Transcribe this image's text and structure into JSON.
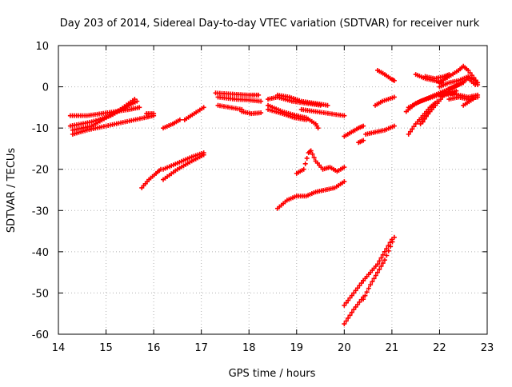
{
  "chart_data": {
    "type": "scatter",
    "title": "Day 203 of 2014, Sidereal Day-to-day VTEC variation (SDTVAR) for receiver nurk",
    "xlabel": "GPS time / hours",
    "ylabel": "SDTVAR / TECUs",
    "xlim": [
      14,
      23
    ],
    "ylim": [
      -60,
      10
    ],
    "x_ticks": [
      14,
      15,
      16,
      17,
      18,
      19,
      20,
      21,
      22,
      23
    ],
    "y_ticks": [
      -60,
      -50,
      -40,
      -30,
      -20,
      -10,
      0,
      10
    ],
    "grid": true,
    "legend": "none",
    "marker": "+",
    "marker_color": "#ff0000",
    "segments": [
      [
        [
          14.25,
          -7.0
        ],
        [
          14.6,
          -7.0
        ],
        [
          14.9,
          -6.5
        ],
        [
          15.2,
          -6.0
        ],
        [
          15.5,
          -5.5
        ],
        [
          15.7,
          -5.0
        ]
      ],
      [
        [
          14.25,
          -9.5
        ],
        [
          14.7,
          -8.5
        ],
        [
          15.1,
          -7.0
        ],
        [
          15.4,
          -5.0
        ],
        [
          15.65,
          -3.5
        ]
      ],
      [
        [
          14.3,
          -10.5
        ],
        [
          14.7,
          -9.5
        ],
        [
          15.0,
          -7.5
        ],
        [
          15.3,
          -5.5
        ],
        [
          15.6,
          -3.0
        ]
      ],
      [
        [
          14.3,
          -11.5
        ],
        [
          14.6,
          -10.5
        ],
        [
          15.0,
          -9.5
        ],
        [
          15.4,
          -8.5
        ],
        [
          15.8,
          -7.5
        ],
        [
          16.0,
          -7.0
        ]
      ],
      [
        [
          15.85,
          -6.5
        ],
        [
          16.0,
          -6.5
        ]
      ],
      [
        [
          15.75,
          -24.5
        ],
        [
          15.9,
          -22.5
        ],
        [
          16.05,
          -21.0
        ],
        [
          16.15,
          -20.0
        ]
      ],
      [
        [
          16.2,
          -10.0
        ],
        [
          16.4,
          -9.0
        ],
        [
          16.55,
          -8.0
        ]
      ],
      [
        [
          16.65,
          -8.0
        ],
        [
          16.85,
          -6.5
        ],
        [
          17.05,
          -5.0
        ]
      ],
      [
        [
          16.2,
          -20.0
        ],
        [
          16.5,
          -18.5
        ],
        [
          16.8,
          -17.0
        ],
        [
          17.05,
          -16.0
        ]
      ],
      [
        [
          16.2,
          -22.5
        ],
        [
          16.5,
          -20.0
        ],
        [
          16.8,
          -18.0
        ],
        [
          17.05,
          -16.5
        ]
      ],
      [
        [
          17.3,
          -1.5
        ],
        [
          17.7,
          -1.8
        ],
        [
          18.0,
          -2.0
        ],
        [
          18.2,
          -2.0
        ]
      ],
      [
        [
          17.35,
          -2.5
        ],
        [
          17.7,
          -3.0
        ],
        [
          18.0,
          -3.2
        ],
        [
          18.25,
          -3.5
        ]
      ],
      [
        [
          17.35,
          -4.5
        ],
        [
          17.6,
          -5.0
        ],
        [
          17.85,
          -5.5
        ]
      ],
      [
        [
          17.85,
          -6.0
        ],
        [
          18.05,
          -6.5
        ],
        [
          18.25,
          -6.3
        ]
      ],
      [
        [
          18.4,
          -3.0
        ],
        [
          18.6,
          -2.5
        ],
        [
          18.9,
          -3.5
        ],
        [
          19.2,
          -4.0
        ],
        [
          19.5,
          -4.5
        ]
      ],
      [
        [
          18.6,
          -2.0
        ],
        [
          18.85,
          -2.5
        ],
        [
          19.1,
          -3.5
        ],
        [
          19.4,
          -4.0
        ],
        [
          19.65,
          -4.5
        ]
      ],
      [
        [
          18.4,
          -4.5
        ],
        [
          18.7,
          -6.0
        ],
        [
          19.0,
          -7.0
        ],
        [
          19.2,
          -7.5
        ],
        [
          19.4,
          -9.0
        ],
        [
          19.45,
          -10.0
        ]
      ],
      [
        [
          18.4,
          -5.5
        ],
        [
          18.7,
          -6.5
        ],
        [
          18.95,
          -7.5
        ],
        [
          19.2,
          -8.0
        ]
      ],
      [
        [
          19.1,
          -5.5
        ],
        [
          19.4,
          -6.0
        ],
        [
          19.7,
          -6.5
        ],
        [
          20.0,
          -7.0
        ]
      ],
      [
        [
          18.6,
          -29.5
        ],
        [
          18.8,
          -27.5
        ],
        [
          19.0,
          -26.5
        ],
        [
          19.2,
          -26.5
        ],
        [
          19.4,
          -25.5
        ],
        [
          19.6,
          -25.0
        ],
        [
          19.8,
          -24.5
        ],
        [
          20.0,
          -23.0
        ]
      ],
      [
        [
          19.0,
          -21.0
        ],
        [
          19.15,
          -20.0
        ],
        [
          19.25,
          -16.0
        ],
        [
          19.3,
          -15.5
        ],
        [
          19.4,
          -18.0
        ],
        [
          19.55,
          -20.0
        ],
        [
          19.7,
          -19.5
        ],
        [
          19.85,
          -20.5
        ],
        [
          20.0,
          -19.5
        ]
      ],
      [
        [
          20.0,
          -12.0
        ],
        [
          20.15,
          -11.0
        ],
        [
          20.3,
          -10.0
        ],
        [
          20.4,
          -9.5
        ]
      ],
      [
        [
          20.3,
          -13.5
        ],
        [
          20.4,
          -13.0
        ]
      ],
      [
        [
          20.45,
          -11.5
        ],
        [
          20.65,
          -11.0
        ],
        [
          20.85,
          -10.5
        ],
        [
          21.05,
          -9.5
        ]
      ],
      [
        [
          20.65,
          -4.5
        ],
        [
          20.8,
          -3.5
        ],
        [
          21.05,
          -2.5
        ]
      ],
      [
        [
          20.7,
          4.0
        ],
        [
          20.85,
          3.0
        ],
        [
          21.0,
          1.8
        ],
        [
          21.05,
          1.5
        ]
      ],
      [
        [
          20.0,
          -53.0
        ],
        [
          20.2,
          -50.0
        ],
        [
          20.4,
          -47.0
        ]
      ],
      [
        [
          20.0,
          -57.5
        ],
        [
          20.2,
          -54.0
        ],
        [
          20.4,
          -51.0
        ]
      ],
      [
        [
          20.4,
          -51.5
        ],
        [
          20.55,
          -48.0
        ],
        [
          20.7,
          -45.0
        ],
        [
          20.85,
          -42.0
        ],
        [
          21.05,
          -36.5
        ]
      ],
      [
        [
          20.4,
          -47.0
        ],
        [
          20.55,
          -45.0
        ],
        [
          20.7,
          -43.0
        ],
        [
          20.85,
          -40.0
        ],
        [
          21.0,
          -37.0
        ]
      ],
      [
        [
          21.35,
          -11.5
        ],
        [
          21.5,
          -9.0
        ],
        [
          21.65,
          -7.0
        ],
        [
          21.8,
          -5.0
        ],
        [
          21.9,
          -4.0
        ]
      ],
      [
        [
          21.3,
          -6.0
        ],
        [
          21.5,
          -4.0
        ],
        [
          21.7,
          -3.0
        ],
        [
          21.9,
          -2.0
        ],
        [
          22.1,
          -1.0
        ],
        [
          22.3,
          0.0
        ],
        [
          22.5,
          1.0
        ]
      ],
      [
        [
          21.35,
          -5.0
        ],
        [
          21.6,
          -3.5
        ],
        [
          21.85,
          -2.5
        ],
        [
          22.1,
          -1.5
        ],
        [
          22.35,
          -1.0
        ]
      ],
      [
        [
          21.6,
          -9.0
        ],
        [
          21.8,
          -6.0
        ],
        [
          21.95,
          -4.0
        ],
        [
          22.1,
          -2.0
        ],
        [
          22.3,
          -1.5
        ]
      ],
      [
        [
          21.65,
          -8.5
        ],
        [
          21.8,
          -5.5
        ],
        [
          21.95,
          -3.5
        ]
      ],
      [
        [
          21.7,
          2.5
        ],
        [
          21.9,
          2.0
        ],
        [
          22.1,
          2.5
        ],
        [
          22.2,
          3.0
        ]
      ],
      [
        [
          21.5,
          3.0
        ],
        [
          21.7,
          2.0
        ],
        [
          21.9,
          1.5
        ],
        [
          22.05,
          1.0
        ]
      ],
      [
        [
          22.0,
          1.0
        ],
        [
          22.2,
          2.5
        ],
        [
          22.4,
          4.0
        ],
        [
          22.5,
          5.0
        ],
        [
          22.6,
          4.0
        ],
        [
          22.8,
          1.0
        ]
      ],
      [
        [
          22.0,
          0.0
        ],
        [
          22.2,
          1.0
        ],
        [
          22.4,
          1.5
        ],
        [
          22.6,
          2.5
        ],
        [
          22.75,
          1.5
        ],
        [
          22.8,
          0.5
        ]
      ],
      [
        [
          22.0,
          -2.0
        ],
        [
          22.2,
          -1.5
        ],
        [
          22.4,
          -2.0
        ],
        [
          22.6,
          -2.5
        ],
        [
          22.8,
          -2.0
        ]
      ],
      [
        [
          22.2,
          -3.0
        ],
        [
          22.4,
          -2.5
        ],
        [
          22.6,
          -3.0
        ],
        [
          22.8,
          -2.5
        ]
      ],
      [
        [
          22.2,
          -0.5
        ],
        [
          22.4,
          0.5
        ],
        [
          22.6,
          2.0
        ],
        [
          22.75,
          0.5
        ]
      ],
      [
        [
          22.5,
          -4.5
        ],
        [
          22.7,
          -3.0
        ]
      ]
    ]
  }
}
